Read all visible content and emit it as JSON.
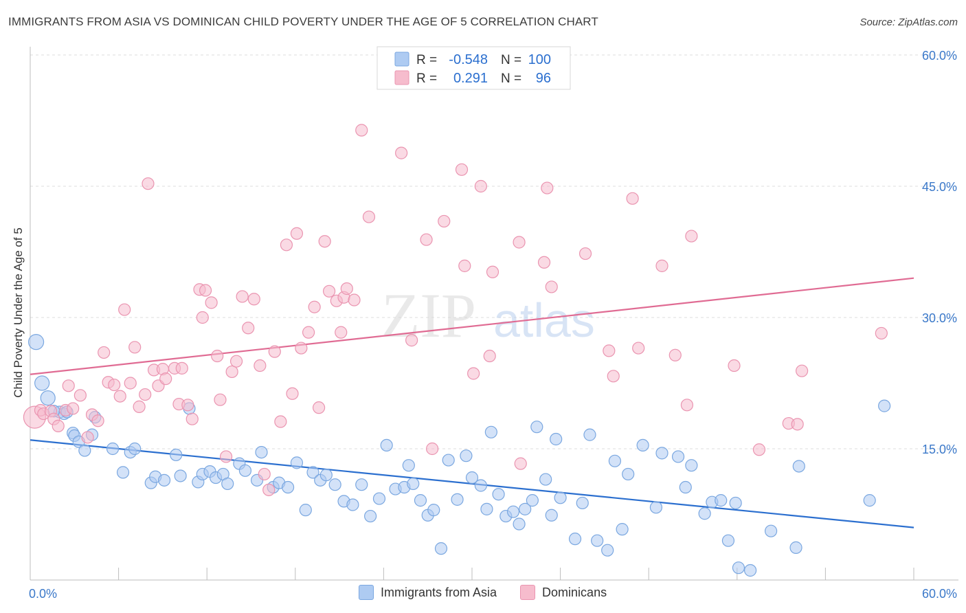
{
  "title": "IMMIGRANTS FROM ASIA VS DOMINICAN CHILD POVERTY UNDER THE AGE OF 5 CORRELATION CHART",
  "source": "Source: ZipAtlas.com",
  "watermark": {
    "zip": "ZIP",
    "atlas": "atlas"
  },
  "colors": {
    "blue_fill": "#aecbf2",
    "blue_stroke": "#7aa7e0",
    "blue_line": "#2b6fcf",
    "pink_fill": "#f6bccd",
    "pink_stroke": "#ea94b0",
    "pink_line": "#e06b93",
    "axis_text": "#3a78c9",
    "grid": "#dcdcdc"
  },
  "stats": {
    "rows": [
      {
        "r_label": "R =",
        "r_value": "-0.548",
        "n_label": "N =",
        "n_value": "100"
      },
      {
        "r_label": "R =",
        "r_value": "0.291",
        "n_label": "N =",
        "n_value": "96"
      }
    ]
  },
  "chart_data": {
    "type": "scatter",
    "title": "IMMIGRANTS FROM ASIA VS DOMINICAN CHILD POVERTY UNDER THE AGE OF 5 CORRELATION CHART",
    "xlabel": "",
    "ylabel": "Child Poverty Under the Age of 5",
    "xlim": [
      0,
      60
    ],
    "ylim": [
      0,
      60
    ],
    "x_tick_labels": [
      {
        "value": 0,
        "label": "0.0%"
      },
      {
        "value": 60,
        "label": "60.0%"
      }
    ],
    "y_tick_labels": [
      {
        "value": 15,
        "label": "15.0%"
      },
      {
        "value": 30,
        "label": "30.0%"
      },
      {
        "value": 45,
        "label": "45.0%"
      },
      {
        "value": 60,
        "label": "60.0%"
      }
    ],
    "y_gridlines": [
      15,
      30,
      45,
      60
    ],
    "x_minor_ticks": [
      6,
      12,
      18,
      24,
      30,
      36,
      42,
      48,
      54,
      60
    ],
    "legend_position": "bottom",
    "series": [
      {
        "name": "Immigrants from Asia",
        "color": "blue",
        "trend": {
          "x": [
            0,
            60
          ],
          "y": [
            16.0,
            6.0
          ]
        },
        "points": [
          [
            0.4,
            27.2
          ],
          [
            0.8,
            22.5
          ],
          [
            1.2,
            20.8
          ],
          [
            2.0,
            19.2
          ],
          [
            2.3,
            19.0
          ],
          [
            2.9,
            16.8
          ],
          [
            3.0,
            16.5
          ],
          [
            3.3,
            15.8
          ],
          [
            3.7,
            14.8
          ],
          [
            4.2,
            16.6
          ],
          [
            5.6,
            15.0
          ],
          [
            6.8,
            14.6
          ],
          [
            7.1,
            15.0
          ],
          [
            4.4,
            18.6
          ],
          [
            6.3,
            12.3
          ],
          [
            8.2,
            11.1
          ],
          [
            8.5,
            11.8
          ],
          [
            9.1,
            11.4
          ],
          [
            9.9,
            14.3
          ],
          [
            10.2,
            11.9
          ],
          [
            10.8,
            19.6
          ],
          [
            11.4,
            11.2
          ],
          [
            11.7,
            12.1
          ],
          [
            12.2,
            12.4
          ],
          [
            12.6,
            11.7
          ],
          [
            13.1,
            12.1
          ],
          [
            13.4,
            11.0
          ],
          [
            14.2,
            13.3
          ],
          [
            14.6,
            12.5
          ],
          [
            15.4,
            11.4
          ],
          [
            15.7,
            14.6
          ],
          [
            16.5,
            10.6
          ],
          [
            16.9,
            11.1
          ],
          [
            17.5,
            10.6
          ],
          [
            18.1,
            13.4
          ],
          [
            18.7,
            8.0
          ],
          [
            19.2,
            12.3
          ],
          [
            19.7,
            11.4
          ],
          [
            20.1,
            12.0
          ],
          [
            20.7,
            10.9
          ],
          [
            21.3,
            9.0
          ],
          [
            21.9,
            8.6
          ],
          [
            22.5,
            10.9
          ],
          [
            23.1,
            7.3
          ],
          [
            23.7,
            9.3
          ],
          [
            24.2,
            15.4
          ],
          [
            24.8,
            10.4
          ],
          [
            25.4,
            10.6
          ],
          [
            25.7,
            13.1
          ],
          [
            26.0,
            11.0
          ],
          [
            26.5,
            9.1
          ],
          [
            27.0,
            7.4
          ],
          [
            27.4,
            8.0
          ],
          [
            27.9,
            3.6
          ],
          [
            28.4,
            13.7
          ],
          [
            29.0,
            9.2
          ],
          [
            29.6,
            14.2
          ],
          [
            30.0,
            11.7
          ],
          [
            30.6,
            10.8
          ],
          [
            31.0,
            8.1
          ],
          [
            31.3,
            16.9
          ],
          [
            31.8,
            9.8
          ],
          [
            32.3,
            7.3
          ],
          [
            32.8,
            7.8
          ],
          [
            33.2,
            6.4
          ],
          [
            33.6,
            8.1
          ],
          [
            34.1,
            9.1
          ],
          [
            34.4,
            17.5
          ],
          [
            35.0,
            11.5
          ],
          [
            35.4,
            7.4
          ],
          [
            35.7,
            16.1
          ],
          [
            36.0,
            9.4
          ],
          [
            37.0,
            4.7
          ],
          [
            37.5,
            8.8
          ],
          [
            38.0,
            16.6
          ],
          [
            38.5,
            4.5
          ],
          [
            39.2,
            3.4
          ],
          [
            39.7,
            13.6
          ],
          [
            40.2,
            5.8
          ],
          [
            40.6,
            12.1
          ],
          [
            41.6,
            15.4
          ],
          [
            42.5,
            8.3
          ],
          [
            42.9,
            14.5
          ],
          [
            44.0,
            14.1
          ],
          [
            44.5,
            10.6
          ],
          [
            44.9,
            13.1
          ],
          [
            45.8,
            7.6
          ],
          [
            46.3,
            8.9
          ],
          [
            46.9,
            9.1
          ],
          [
            47.4,
            4.5
          ],
          [
            47.9,
            8.8
          ],
          [
            48.1,
            1.4
          ],
          [
            48.9,
            1.1
          ],
          [
            50.3,
            5.6
          ],
          [
            52.0,
            3.7
          ],
          [
            52.2,
            13.0
          ],
          [
            57.0,
            9.1
          ],
          [
            58.0,
            19.9
          ],
          [
            1.6,
            19.3
          ],
          [
            2.5,
            19.2
          ]
        ]
      },
      {
        "name": "Dominicans",
        "color": "pink",
        "trend": {
          "x": [
            0,
            60
          ],
          "y": [
            23.5,
            34.5
          ]
        },
        "points": [
          [
            0.3,
            18.6
          ],
          [
            0.7,
            19.4
          ],
          [
            0.9,
            19.0
          ],
          [
            1.4,
            19.3
          ],
          [
            1.6,
            18.4
          ],
          [
            1.9,
            17.6
          ],
          [
            2.4,
            19.4
          ],
          [
            2.6,
            22.2
          ],
          [
            2.9,
            19.6
          ],
          [
            3.4,
            21.1
          ],
          [
            3.9,
            16.3
          ],
          [
            4.2,
            18.9
          ],
          [
            4.6,
            18.2
          ],
          [
            5.0,
            26.0
          ],
          [
            5.3,
            22.6
          ],
          [
            5.7,
            22.3
          ],
          [
            6.1,
            21.0
          ],
          [
            6.4,
            30.9
          ],
          [
            6.8,
            22.5
          ],
          [
            7.1,
            26.6
          ],
          [
            7.4,
            19.8
          ],
          [
            7.8,
            21.2
          ],
          [
            8.0,
            45.3
          ],
          [
            8.4,
            24.0
          ],
          [
            8.7,
            22.2
          ],
          [
            9.0,
            24.1
          ],
          [
            9.2,
            23.0
          ],
          [
            9.8,
            24.2
          ],
          [
            10.1,
            20.1
          ],
          [
            10.3,
            24.2
          ],
          [
            10.7,
            20.0
          ],
          [
            11.0,
            18.4
          ],
          [
            11.5,
            33.2
          ],
          [
            11.7,
            30.0
          ],
          [
            11.9,
            33.1
          ],
          [
            12.3,
            31.7
          ],
          [
            12.7,
            25.6
          ],
          [
            12.9,
            20.6
          ],
          [
            13.3,
            14.1
          ],
          [
            13.7,
            23.8
          ],
          [
            14.0,
            25.0
          ],
          [
            14.4,
            32.4
          ],
          [
            14.8,
            28.8
          ],
          [
            15.2,
            32.1
          ],
          [
            15.6,
            24.5
          ],
          [
            15.9,
            12.1
          ],
          [
            16.2,
            10.3
          ],
          [
            16.6,
            26.1
          ],
          [
            17.0,
            18.1
          ],
          [
            17.4,
            38.3
          ],
          [
            17.8,
            21.3
          ],
          [
            18.1,
            39.6
          ],
          [
            18.4,
            26.5
          ],
          [
            18.9,
            28.3
          ],
          [
            19.3,
            31.2
          ],
          [
            19.6,
            19.7
          ],
          [
            20.0,
            38.7
          ],
          [
            20.3,
            33.0
          ],
          [
            20.8,
            31.9
          ],
          [
            21.1,
            28.3
          ],
          [
            21.3,
            32.3
          ],
          [
            21.5,
            33.3
          ],
          [
            22.0,
            32.0
          ],
          [
            22.5,
            51.4
          ],
          [
            23.0,
            41.5
          ],
          [
            25.2,
            48.8
          ],
          [
            25.9,
            27.4
          ],
          [
            26.9,
            38.9
          ],
          [
            27.3,
            15.0
          ],
          [
            28.1,
            41.0
          ],
          [
            29.3,
            46.9
          ],
          [
            29.5,
            35.9
          ],
          [
            30.1,
            23.6
          ],
          [
            30.6,
            45.0
          ],
          [
            31.2,
            25.6
          ],
          [
            31.4,
            35.2
          ],
          [
            33.2,
            38.6
          ],
          [
            33.3,
            13.3
          ],
          [
            34.9,
            36.3
          ],
          [
            35.1,
            44.8
          ],
          [
            35.4,
            33.5
          ],
          [
            37.7,
            37.3
          ],
          [
            39.3,
            26.2
          ],
          [
            39.6,
            23.3
          ],
          [
            40.9,
            43.6
          ],
          [
            41.3,
            26.5
          ],
          [
            42.9,
            35.9
          ],
          [
            43.8,
            25.7
          ],
          [
            44.6,
            20.0
          ],
          [
            44.9,
            39.3
          ],
          [
            47.8,
            24.5
          ],
          [
            49.5,
            14.9
          ],
          [
            51.5,
            17.9
          ],
          [
            52.1,
            17.8
          ],
          [
            52.4,
            23.9
          ],
          [
            57.8,
            28.2
          ]
        ]
      }
    ]
  }
}
